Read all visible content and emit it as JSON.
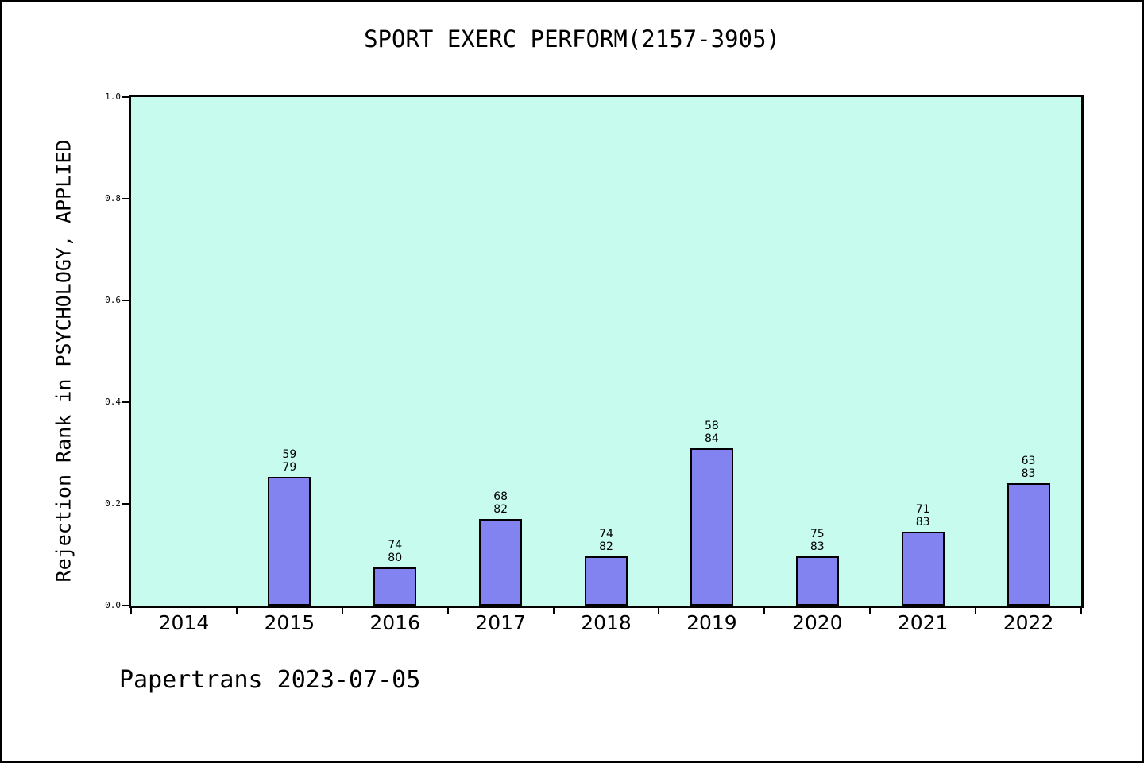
{
  "footer": {
    "text": "Papertrans 2023-07-05"
  },
  "colors": {
    "plot_background": "#c7fbee",
    "bar_fill": "#8282f0",
    "bar_edge": "#000000",
    "axis": "#000000",
    "page_background": "#ffffff"
  },
  "chart_data": {
    "type": "bar",
    "title": "SPORT EXERC PERFORM(2157-3905)",
    "xlabel": "",
    "ylabel": "Rejection Rank in PSYCHOLOGY, APPLIED",
    "categories": [
      "2014",
      "2015",
      "2016",
      "2017",
      "2018",
      "2019",
      "2020",
      "2021",
      "2022"
    ],
    "bars": [
      {
        "year": "2014",
        "rank": null,
        "total": null,
        "value": 0
      },
      {
        "year": "2015",
        "rank": 59,
        "total": 79,
        "value": 0.2532
      },
      {
        "year": "2016",
        "rank": 74,
        "total": 80,
        "value": 0.075
      },
      {
        "year": "2017",
        "rank": 68,
        "total": 82,
        "value": 0.1707
      },
      {
        "year": "2018",
        "rank": 74,
        "total": 82,
        "value": 0.0976
      },
      {
        "year": "2019",
        "rank": 58,
        "total": 84,
        "value": 0.3095
      },
      {
        "year": "2020",
        "rank": 75,
        "total": 83,
        "value": 0.0964
      },
      {
        "year": "2021",
        "rank": 71,
        "total": 83,
        "value": 0.1446
      },
      {
        "year": "2022",
        "rank": 63,
        "total": 83,
        "value": 0.241
      }
    ],
    "y_ticks": [
      "0.0",
      "0.2",
      "0.4",
      "0.6",
      "0.8",
      "1.0"
    ],
    "ylim": [
      0,
      1
    ],
    "grid": false,
    "legend": null,
    "annotation_format": "rank over total, two lines above each bar"
  }
}
